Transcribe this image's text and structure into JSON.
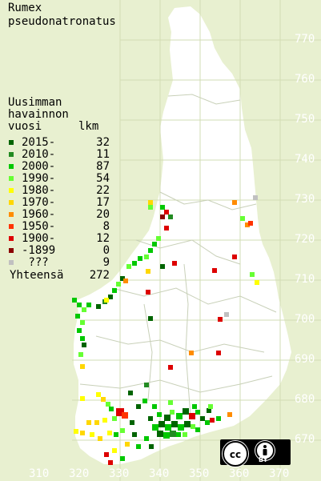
{
  "title": [
    "Rumex",
    "pseudonatronatus"
  ],
  "legend": {
    "heading": [
      "Uusimman",
      "havainnon",
      "vuosi"
    ],
    "count_heading": "lkm",
    "rows": [
      {
        "label": "2015-",
        "count": "32",
        "color": "#006400"
      },
      {
        "label": "2010-",
        "count": "11",
        "color": "#228b22"
      },
      {
        "label": "2000-",
        "count": "87",
        "color": "#00c800"
      },
      {
        "label": "1990-",
        "count": "54",
        "color": "#66ff33"
      },
      {
        "label": "1980-",
        "count": "22",
        "color": "#ffff00"
      },
      {
        "label": "1970-",
        "count": "17",
        "color": "#ffd700"
      },
      {
        "label": "1960-",
        "count": "20",
        "color": "#ff8c00"
      },
      {
        "label": "1950-",
        "count": "8",
        "color": "#ff3300"
      },
      {
        "label": "1900-",
        "count": "12",
        "color": "#dd0000"
      },
      {
        "label": "-1899",
        "count": "0",
        "color": "#8b0000"
      },
      {
        "label": " ???",
        "count": "9",
        "color": "#c0c0c0"
      }
    ],
    "total_label": "Yhteensä",
    "total_count": "272"
  },
  "y_axis": [
    "770",
    "760",
    "750",
    "740",
    "730",
    "720",
    "710",
    "700",
    "690",
    "680",
    "670"
  ],
  "x_axis": [
    "310",
    "320",
    "330",
    "340",
    "350",
    "360",
    "370"
  ],
  "license": {
    "icon": "cc-by-icon",
    "text": "BY"
  },
  "colors": {
    "land": "#ffffff",
    "background": "#e8f0d0",
    "grid": "#d2dcb4"
  }
}
